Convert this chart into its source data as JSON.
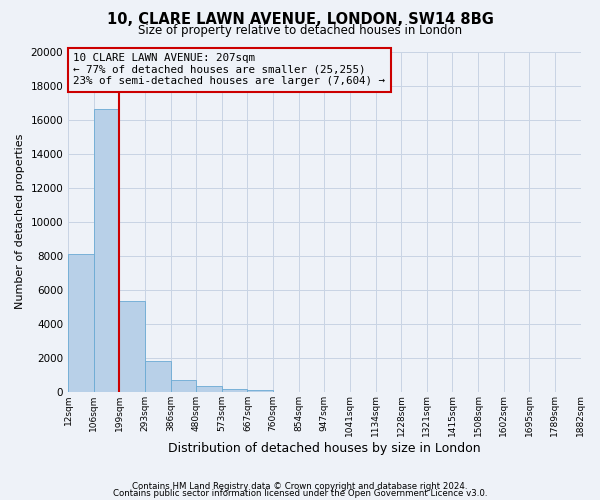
{
  "title": "10, CLARE LAWN AVENUE, LONDON, SW14 8BG",
  "subtitle": "Size of property relative to detached houses in London",
  "xlabel": "Distribution of detached houses by size in London",
  "ylabel": "Number of detached properties",
  "bar_values": [
    8100,
    16600,
    5300,
    1800,
    700,
    300,
    150,
    100,
    0,
    0,
    0,
    0,
    0,
    0,
    0,
    0,
    0,
    0,
    0,
    0
  ],
  "bin_labels": [
    "12sqm",
    "106sqm",
    "199sqm",
    "293sqm",
    "386sqm",
    "480sqm",
    "573sqm",
    "667sqm",
    "760sqm",
    "854sqm",
    "947sqm",
    "1041sqm",
    "1134sqm",
    "1228sqm",
    "1321sqm",
    "1415sqm",
    "1508sqm",
    "1602sqm",
    "1695sqm",
    "1789sqm",
    "1882sqm"
  ],
  "bar_color": "#b8d0e8",
  "bar_edge_color": "#6aaad4",
  "red_line_x": 2,
  "annotation_title": "10 CLARE LAWN AVENUE: 207sqm",
  "annotation_line1": "← 77% of detached houses are smaller (25,255)",
  "annotation_line2": "23% of semi-detached houses are larger (7,604) →",
  "vline_color": "#cc0000",
  "annotation_box_edge": "#cc0000",
  "ylim": [
    0,
    20000
  ],
  "yticks": [
    0,
    2000,
    4000,
    6000,
    8000,
    10000,
    12000,
    14000,
    16000,
    18000,
    20000
  ],
  "footer1": "Contains HM Land Registry data © Crown copyright and database right 2024.",
  "footer2": "Contains public sector information licensed under the Open Government Licence v3.0.",
  "bg_color": "#eef2f8",
  "grid_color": "#c8d4e4"
}
